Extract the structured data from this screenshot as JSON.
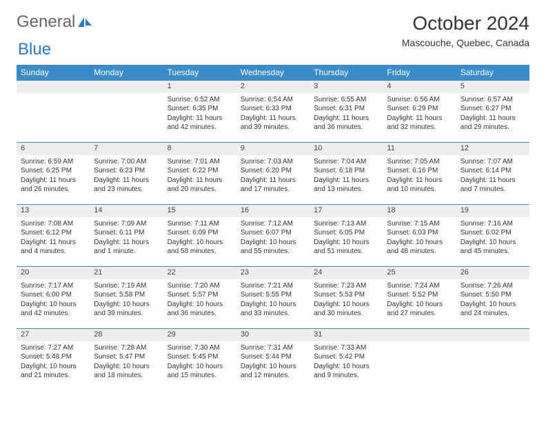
{
  "logo": {
    "text1": "General",
    "text2": "Blue"
  },
  "title": "October 2024",
  "subtitle": "Mascouche, Quebec, Canada",
  "dayHeaders": [
    "Sunday",
    "Monday",
    "Tuesday",
    "Wednesday",
    "Thursday",
    "Friday",
    "Saturday"
  ],
  "colors": {
    "headerBg": "#3b8bc9",
    "dayStripe": "#eeeeee",
    "accent": "#2b7bbf"
  },
  "weeks": [
    {
      "nums": [
        "",
        "",
        "1",
        "2",
        "3",
        "4",
        "5"
      ],
      "cells": [
        {
          "sunrise": "",
          "sunset": "",
          "daylight": ""
        },
        {
          "sunrise": "",
          "sunset": "",
          "daylight": ""
        },
        {
          "sunrise": "Sunrise: 6:52 AM",
          "sunset": "Sunset: 6:35 PM",
          "daylight": "Daylight: 11 hours and 42 minutes."
        },
        {
          "sunrise": "Sunrise: 6:54 AM",
          "sunset": "Sunset: 6:33 PM",
          "daylight": "Daylight: 11 hours and 39 minutes."
        },
        {
          "sunrise": "Sunrise: 6:55 AM",
          "sunset": "Sunset: 6:31 PM",
          "daylight": "Daylight: 11 hours and 36 minutes."
        },
        {
          "sunrise": "Sunrise: 6:56 AM",
          "sunset": "Sunset: 6:29 PM",
          "daylight": "Daylight: 11 hours and 32 minutes."
        },
        {
          "sunrise": "Sunrise: 6:57 AM",
          "sunset": "Sunset: 6:27 PM",
          "daylight": "Daylight: 11 hours and 29 minutes."
        }
      ]
    },
    {
      "nums": [
        "6",
        "7",
        "8",
        "9",
        "10",
        "11",
        "12"
      ],
      "cells": [
        {
          "sunrise": "Sunrise: 6:59 AM",
          "sunset": "Sunset: 6:25 PM",
          "daylight": "Daylight: 11 hours and 26 minutes."
        },
        {
          "sunrise": "Sunrise: 7:00 AM",
          "sunset": "Sunset: 6:23 PM",
          "daylight": "Daylight: 11 hours and 23 minutes."
        },
        {
          "sunrise": "Sunrise: 7:01 AM",
          "sunset": "Sunset: 6:22 PM",
          "daylight": "Daylight: 11 hours and 20 minutes."
        },
        {
          "sunrise": "Sunrise: 7:03 AM",
          "sunset": "Sunset: 6:20 PM",
          "daylight": "Daylight: 11 hours and 17 minutes."
        },
        {
          "sunrise": "Sunrise: 7:04 AM",
          "sunset": "Sunset: 6:18 PM",
          "daylight": "Daylight: 11 hours and 13 minutes."
        },
        {
          "sunrise": "Sunrise: 7:05 AM",
          "sunset": "Sunset: 6:16 PM",
          "daylight": "Daylight: 11 hours and 10 minutes."
        },
        {
          "sunrise": "Sunrise: 7:07 AM",
          "sunset": "Sunset: 6:14 PM",
          "daylight": "Daylight: 11 hours and 7 minutes."
        }
      ]
    },
    {
      "nums": [
        "13",
        "14",
        "15",
        "16",
        "17",
        "18",
        "19"
      ],
      "cells": [
        {
          "sunrise": "Sunrise: 7:08 AM",
          "sunset": "Sunset: 6:12 PM",
          "daylight": "Daylight: 11 hours and 4 minutes."
        },
        {
          "sunrise": "Sunrise: 7:09 AM",
          "sunset": "Sunset: 6:11 PM",
          "daylight": "Daylight: 11 hours and 1 minute."
        },
        {
          "sunrise": "Sunrise: 7:11 AM",
          "sunset": "Sunset: 6:09 PM",
          "daylight": "Daylight: 10 hours and 58 minutes."
        },
        {
          "sunrise": "Sunrise: 7:12 AM",
          "sunset": "Sunset: 6:07 PM",
          "daylight": "Daylight: 10 hours and 55 minutes."
        },
        {
          "sunrise": "Sunrise: 7:13 AM",
          "sunset": "Sunset: 6:05 PM",
          "daylight": "Daylight: 10 hours and 51 minutes."
        },
        {
          "sunrise": "Sunrise: 7:15 AM",
          "sunset": "Sunset: 6:03 PM",
          "daylight": "Daylight: 10 hours and 48 minutes."
        },
        {
          "sunrise": "Sunrise: 7:16 AM",
          "sunset": "Sunset: 6:02 PM",
          "daylight": "Daylight: 10 hours and 45 minutes."
        }
      ]
    },
    {
      "nums": [
        "20",
        "21",
        "22",
        "23",
        "24",
        "25",
        "26"
      ],
      "cells": [
        {
          "sunrise": "Sunrise: 7:17 AM",
          "sunset": "Sunset: 6:00 PM",
          "daylight": "Daylight: 10 hours and 42 minutes."
        },
        {
          "sunrise": "Sunrise: 7:19 AM",
          "sunset": "Sunset: 5:58 PM",
          "daylight": "Daylight: 10 hours and 39 minutes."
        },
        {
          "sunrise": "Sunrise: 7:20 AM",
          "sunset": "Sunset: 5:57 PM",
          "daylight": "Daylight: 10 hours and 36 minutes."
        },
        {
          "sunrise": "Sunrise: 7:21 AM",
          "sunset": "Sunset: 5:55 PM",
          "daylight": "Daylight: 10 hours and 33 minutes."
        },
        {
          "sunrise": "Sunrise: 7:23 AM",
          "sunset": "Sunset: 5:53 PM",
          "daylight": "Daylight: 10 hours and 30 minutes."
        },
        {
          "sunrise": "Sunrise: 7:24 AM",
          "sunset": "Sunset: 5:52 PM",
          "daylight": "Daylight: 10 hours and 27 minutes."
        },
        {
          "sunrise": "Sunrise: 7:26 AM",
          "sunset": "Sunset: 5:50 PM",
          "daylight": "Daylight: 10 hours and 24 minutes."
        }
      ]
    },
    {
      "nums": [
        "27",
        "28",
        "29",
        "30",
        "31",
        "",
        ""
      ],
      "cells": [
        {
          "sunrise": "Sunrise: 7:27 AM",
          "sunset": "Sunset: 5:48 PM",
          "daylight": "Daylight: 10 hours and 21 minutes."
        },
        {
          "sunrise": "Sunrise: 7:28 AM",
          "sunset": "Sunset: 5:47 PM",
          "daylight": "Daylight: 10 hours and 18 minutes."
        },
        {
          "sunrise": "Sunrise: 7:30 AM",
          "sunset": "Sunset: 5:45 PM",
          "daylight": "Daylight: 10 hours and 15 minutes."
        },
        {
          "sunrise": "Sunrise: 7:31 AM",
          "sunset": "Sunset: 5:44 PM",
          "daylight": "Daylight: 10 hours and 12 minutes."
        },
        {
          "sunrise": "Sunrise: 7:33 AM",
          "sunset": "Sunset: 5:42 PM",
          "daylight": "Daylight: 10 hours and 9 minutes."
        },
        {
          "sunrise": "",
          "sunset": "",
          "daylight": ""
        },
        {
          "sunrise": "",
          "sunset": "",
          "daylight": ""
        }
      ]
    }
  ]
}
